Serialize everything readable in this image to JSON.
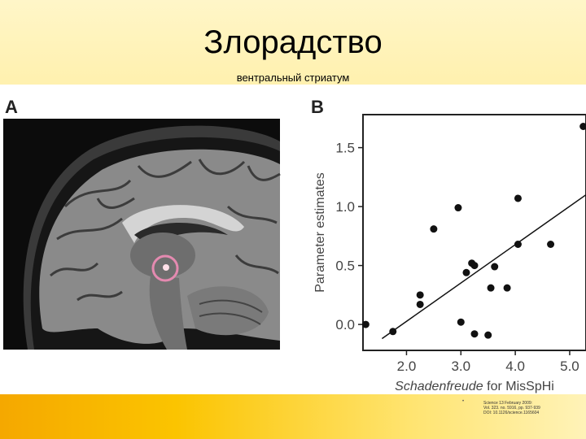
{
  "slide": {
    "title": "Злорадство",
    "subtitle": "вентральный стриатум"
  },
  "panels": {
    "a_label": "A",
    "b_label": "B"
  },
  "chart_data": {
    "type": "scatter",
    "xlabel_italic": "Schadenfreude",
    "xlabel_rest": " for MisSpHi",
    "ylabel": "Parameter estimates",
    "xlim": [
      1.2,
      5.3
    ],
    "ylim": [
      -0.22,
      1.78
    ],
    "x_ticks": [
      "2.0",
      "3.0",
      "4.0",
      "5.0"
    ],
    "x_tick_values": [
      2.0,
      3.0,
      4.0,
      5.0
    ],
    "y_ticks": [
      "0.0",
      "0.5",
      "1.0",
      "1.5"
    ],
    "y_tick_values": [
      0.0,
      0.5,
      1.0,
      1.5
    ],
    "points": [
      {
        "x": 1.25,
        "y": 0.0
      },
      {
        "x": 1.75,
        "y": -0.06
      },
      {
        "x": 2.25,
        "y": 0.25
      },
      {
        "x": 2.25,
        "y": 0.17
      },
      {
        "x": 2.5,
        "y": 0.81
      },
      {
        "x": 2.95,
        "y": 0.99
      },
      {
        "x": 3.0,
        "y": 0.02
      },
      {
        "x": 3.1,
        "y": 0.44
      },
      {
        "x": 3.2,
        "y": 0.52
      },
      {
        "x": 3.25,
        "y": 0.5
      },
      {
        "x": 3.25,
        "y": -0.08
      },
      {
        "x": 3.5,
        "y": -0.09
      },
      {
        "x": 3.55,
        "y": 0.31
      },
      {
        "x": 3.62,
        "y": 0.49
      },
      {
        "x": 3.85,
        "y": 0.31
      },
      {
        "x": 4.05,
        "y": 1.07
      },
      {
        "x": 4.05,
        "y": 0.68
      },
      {
        "x": 4.65,
        "y": 0.68
      },
      {
        "x": 5.25,
        "y": 1.68
      }
    ],
    "fit_line": {
      "x1": 1.55,
      "y1": -0.12,
      "x2": 5.3,
      "y2": 1.1
    },
    "grid": false
  },
  "citation": {
    "bullet": "•",
    "line1": "Science 13 February 2009:",
    "line2": "Vol. 323. no. 5916, pp. 937-939",
    "line3": "DOI: 10.1126/science.1165604"
  }
}
